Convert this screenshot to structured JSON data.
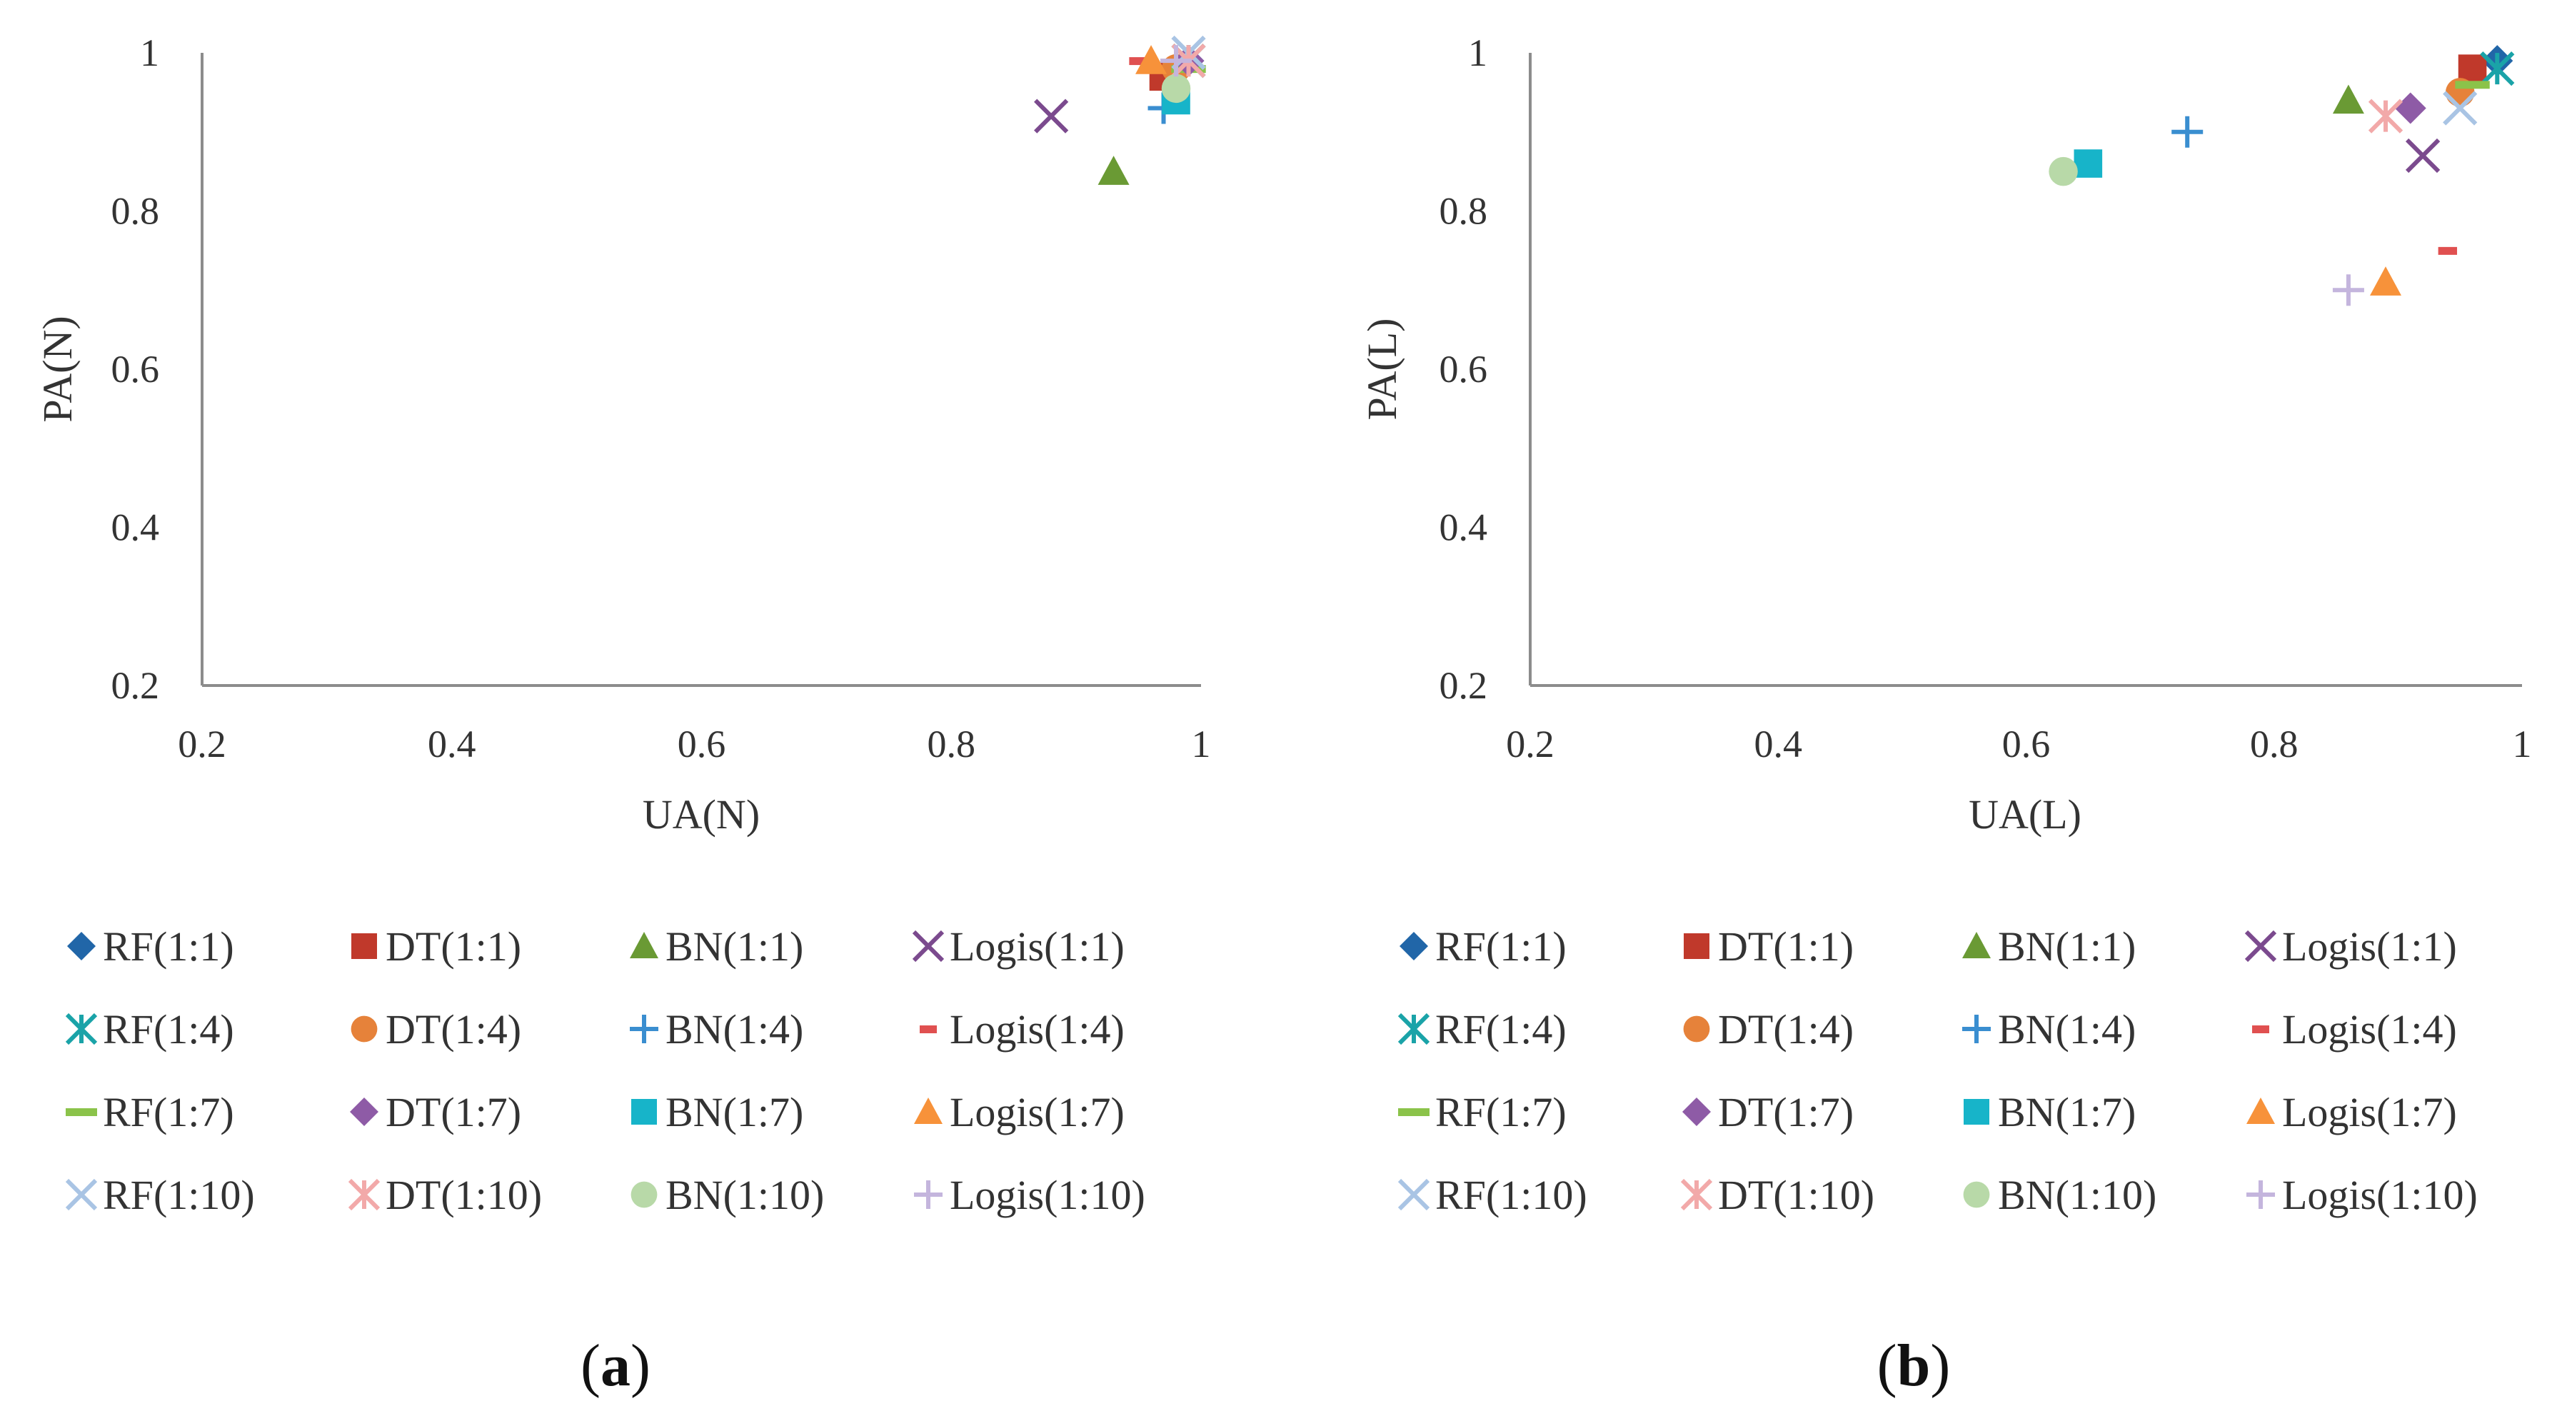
{
  "colors": {
    "RF(1:1)": "#2166a8",
    "DT(1:1)": "#c0392b",
    "BN(1:1)": "#6a9a34",
    "Logis(1:1)": "#7b4a8e",
    "RF(1:4)": "#1aa3a8",
    "DT(1:4)": "#e6823a",
    "BN(1:4)": "#3a8ed0",
    "Logis(1:4)": "#e05050",
    "RF(1:7)": "#8bc34a",
    "DT(1:7)": "#8e5ba6",
    "BN(1:7)": "#17b4c9",
    "Logis(1:7)": "#f7923a",
    "RF(1:10)": "#a9c4e4",
    "DT(1:10)": "#f2a9a9",
    "BN(1:10)": "#b8d9a8",
    "Logis(1:10)": "#c4b5dd"
  },
  "markers": {
    "RF(1:1)": "diamond",
    "DT(1:1)": "square",
    "BN(1:1)": "triangle",
    "Logis(1:1)": "x",
    "RF(1:4)": "asterisk",
    "DT(1:4)": "circle",
    "BN(1:4)": "plus",
    "Logis(1:4)": "dash",
    "RF(1:7)": "bar",
    "DT(1:7)": "diamond",
    "BN(1:7)": "square",
    "Logis(1:7)": "triangle",
    "RF(1:10)": "x",
    "DT(1:10)": "asterisk",
    "BN(1:10)": "circle",
    "Logis(1:10)": "plus"
  },
  "chart_data": [
    {
      "type": "scatter",
      "panel_label": "(a)",
      "xlabel": "UA(N)",
      "ylabel": "PA(N)",
      "xlim": [
        0.2,
        1
      ],
      "ylim": [
        0.2,
        1
      ],
      "x_ticks": [
        "0.2",
        "0.4",
        "0.6",
        "0.8",
        "1"
      ],
      "y_ticks": [
        "0.2",
        "0.4",
        "0.6",
        "0.8",
        "1"
      ],
      "legend": [
        "RF(1:1)",
        "DT(1:1)",
        "BN(1:1)",
        "Logis(1:1)",
        "RF(1:4)",
        "DT(1:4)",
        "BN(1:4)",
        "Logis(1:4)",
        "RF(1:7)",
        "DT(1:7)",
        "BN(1:7)",
        "Logis(1:7)",
        "RF(1:10)",
        "DT(1:10)",
        "BN(1:10)",
        "Logis(1:10)"
      ],
      "series": [
        {
          "name": "RF(1:1)",
          "x": 0.99,
          "y": 0.99
        },
        {
          "name": "DT(1:1)",
          "x": 0.97,
          "y": 0.97
        },
        {
          "name": "BN(1:1)",
          "x": 0.93,
          "y": 0.85
        },
        {
          "name": "Logis(1:1)",
          "x": 0.88,
          "y": 0.92
        },
        {
          "name": "RF(1:4)",
          "x": 0.99,
          "y": 0.99
        },
        {
          "name": "DT(1:4)",
          "x": 0.98,
          "y": 0.98
        },
        {
          "name": "BN(1:4)",
          "x": 0.97,
          "y": 0.93
        },
        {
          "name": "Logis(1:4)",
          "x": 0.95,
          "y": 0.99
        },
        {
          "name": "RF(1:7)",
          "x": 0.99,
          "y": 0.98
        },
        {
          "name": "DT(1:7)",
          "x": 0.99,
          "y": 0.99
        },
        {
          "name": "BN(1:7)",
          "x": 0.98,
          "y": 0.94
        },
        {
          "name": "Logis(1:7)",
          "x": 0.96,
          "y": 0.99
        },
        {
          "name": "RF(1:10)",
          "x": 0.99,
          "y": 1.0
        },
        {
          "name": "DT(1:10)",
          "x": 0.99,
          "y": 0.99
        },
        {
          "name": "BN(1:10)",
          "x": 0.98,
          "y": 0.955
        },
        {
          "name": "Logis(1:10)",
          "x": 0.98,
          "y": 0.99
        }
      ]
    },
    {
      "type": "scatter",
      "panel_label": "(b)",
      "xlabel": "UA(L)",
      "ylabel": "PA(L)",
      "xlim": [
        0.2,
        1
      ],
      "ylim": [
        0.2,
        1
      ],
      "x_ticks": [
        "0.2",
        "0.4",
        "0.6",
        "0.8",
        "1"
      ],
      "y_ticks": [
        "0.2",
        "0.4",
        "0.6",
        "0.8",
        "1"
      ],
      "legend": [
        "RF(1:1)",
        "DT(1:1)",
        "BN(1:1)",
        "Logis(1:1)",
        "RF(1:4)",
        "DT(1:4)",
        "BN(1:4)",
        "Logis(1:4)",
        "RF(1:7)",
        "DT(1:7)",
        "BN(1:7)",
        "Logis(1:7)",
        "RF(1:10)",
        "DT(1:10)",
        "BN(1:10)",
        "Logis(1:10)"
      ],
      "series": [
        {
          "name": "RF(1:1)",
          "x": 0.98,
          "y": 0.99
        },
        {
          "name": "DT(1:1)",
          "x": 0.96,
          "y": 0.98
        },
        {
          "name": "BN(1:1)",
          "x": 0.86,
          "y": 0.94
        },
        {
          "name": "Logis(1:1)",
          "x": 0.92,
          "y": 0.87
        },
        {
          "name": "RF(1:4)",
          "x": 0.98,
          "y": 0.98
        },
        {
          "name": "DT(1:4)",
          "x": 0.95,
          "y": 0.95
        },
        {
          "name": "BN(1:4)",
          "x": 0.73,
          "y": 0.9
        },
        {
          "name": "Logis(1:4)",
          "x": 0.94,
          "y": 0.75
        },
        {
          "name": "RF(1:7)",
          "x": 0.96,
          "y": 0.96
        },
        {
          "name": "DT(1:7)",
          "x": 0.91,
          "y": 0.93
        },
        {
          "name": "BN(1:7)",
          "x": 0.65,
          "y": 0.86
        },
        {
          "name": "Logis(1:7)",
          "x": 0.89,
          "y": 0.71
        },
        {
          "name": "RF(1:10)",
          "x": 0.95,
          "y": 0.93
        },
        {
          "name": "DT(1:10)",
          "x": 0.89,
          "y": 0.92
        },
        {
          "name": "BN(1:10)",
          "x": 0.63,
          "y": 0.85
        },
        {
          "name": "Logis(1:10)",
          "x": 0.86,
          "y": 0.7
        }
      ]
    }
  ]
}
